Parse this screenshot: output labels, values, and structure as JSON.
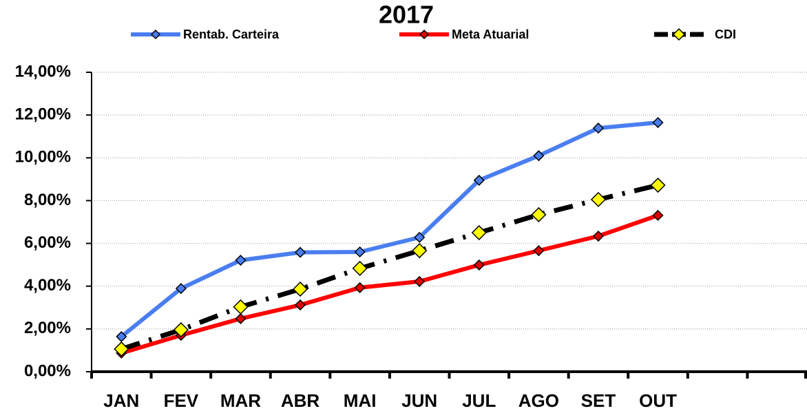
{
  "chart_data": {
    "type": "line",
    "title": "2017",
    "categories": [
      "JAN",
      "FEV",
      "MAR",
      "ABR",
      "MAI",
      "JUN",
      "JUL",
      "AGO",
      "SET",
      "OUT",
      null,
      null
    ],
    "series": [
      {
        "name": "Rentab. Carteira",
        "color": "#4a7ef0",
        "marker_color": "#4a7ef0",
        "values": [
          1.64,
          3.89,
          5.21,
          5.58,
          5.6,
          6.28,
          8.95,
          10.1,
          11.39,
          11.65,
          null,
          null
        ]
      },
      {
        "name": "Meta Atuarial",
        "color": "#ff0000",
        "marker_color": "#e00000",
        "values": [
          0.87,
          1.7,
          2.48,
          3.12,
          3.93,
          4.22,
          4.99,
          5.66,
          6.34,
          7.31,
          null,
          null
        ]
      },
      {
        "name": "CDI",
        "color": "#000000",
        "marker_color": "#ffff00",
        "dashed": true,
        "values": [
          1.06,
          1.96,
          3.03,
          3.86,
          4.83,
          5.66,
          6.5,
          7.34,
          8.05,
          8.72,
          null,
          null
        ]
      }
    ],
    "ylim": [
      0,
      14
    ],
    "yticks": [
      {
        "value": 0,
        "label": "0,00%"
      },
      {
        "value": 2,
        "label": "2,00%"
      },
      {
        "value": 4,
        "label": "4,00%"
      },
      {
        "value": 6,
        "label": "6,00%"
      },
      {
        "value": 8,
        "label": "8,00%"
      },
      {
        "value": 10,
        "label": "10,00%"
      },
      {
        "value": 12,
        "label": "12,00%"
      },
      {
        "value": 14,
        "label": "14,00%"
      }
    ],
    "grid": true,
    "legend": "top"
  }
}
